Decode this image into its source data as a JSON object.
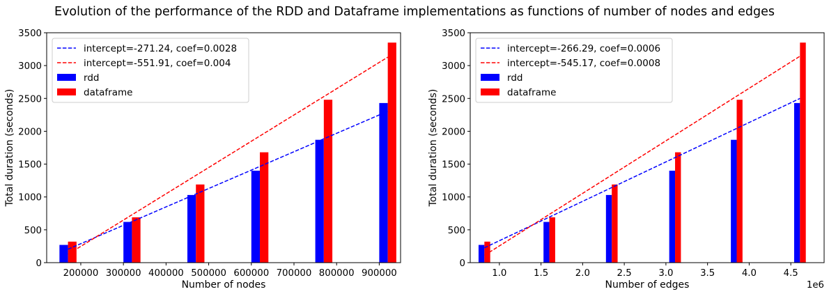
{
  "figure": {
    "title": "Evolution of the performance of the RDD and Dataframe implementations as functions of number of nodes and edges"
  },
  "colors": {
    "rdd": "#0000ff",
    "dataframe": "#ff0000"
  },
  "chart_data": [
    {
      "type": "bar",
      "xlabel": "Number of nodes",
      "ylabel": "Total duration (seconds)",
      "xlim": [
        120000,
        950000
      ],
      "ylim": [
        0,
        3500
      ],
      "xticks": [
        200000,
        300000,
        400000,
        500000,
        600000,
        700000,
        800000,
        900000
      ],
      "xtick_labels": [
        "200000",
        "300000",
        "400000",
        "500000",
        "600000",
        "700000",
        "800000",
        "900000"
      ],
      "yticks": [
        0,
        500,
        1000,
        1500,
        2000,
        2500,
        3000,
        3500
      ],
      "ytick_labels": [
        "0",
        "500",
        "1000",
        "1500",
        "2000",
        "2500",
        "3000",
        "3500"
      ],
      "x_offset_label": "",
      "x": [
        170000,
        320000,
        470000,
        620000,
        770000,
        920000
      ],
      "bar_width": 20000,
      "series": [
        {
          "name": "rdd",
          "color": "#0000ff",
          "values": [
            270,
            620,
            1030,
            1400,
            1870,
            2430
          ]
        },
        {
          "name": "dataframe",
          "color": "#ff0000",
          "values": [
            320,
            690,
            1190,
            1680,
            2480,
            3350
          ]
        }
      ],
      "fit_lines": [
        {
          "label": "intercept=-271.24, coef=0.0028",
          "color": "#0000ff",
          "intercept": -271.24,
          "coef": 0.0028,
          "x_range": [
            170000,
            920000
          ]
        },
        {
          "label": "intercept=-551.91, coef=0.004",
          "color": "#ff0000",
          "intercept": -551.91,
          "coef": 0.004,
          "x_range": [
            170000,
            920000
          ]
        }
      ],
      "legend": [
        "intercept=-271.24, coef=0.0028",
        "intercept=-551.91, coef=0.004",
        "rdd",
        "dataframe"
      ],
      "legend_position": "upper-left",
      "grid": false
    },
    {
      "type": "bar",
      "xlabel": "Number of edges",
      "ylabel": "Total duration (seconds)",
      "xlim": [
        650000,
        4900000
      ],
      "ylim": [
        0,
        3500
      ],
      "xticks": [
        1000000,
        1500000,
        2000000,
        2500000,
        3000000,
        3500000,
        4000000,
        4500000
      ],
      "xtick_labels": [
        "1.0",
        "1.5",
        "2.0",
        "2.5",
        "3.0",
        "3.5",
        "4.0",
        "4.5"
      ],
      "yticks": [
        0,
        500,
        1000,
        1500,
        2000,
        2500,
        3000,
        3500
      ],
      "ytick_labels": [
        "0",
        "500",
        "1000",
        "1500",
        "2000",
        "2500",
        "3000",
        "3500"
      ],
      "x_offset_label": "1e6",
      "x": [
        820000,
        1600000,
        2350000,
        3110000,
        3850000,
        4610000
      ],
      "bar_width": 70000,
      "series": [
        {
          "name": "rdd",
          "color": "#0000ff",
          "values": [
            270,
            620,
            1030,
            1400,
            1870,
            2430
          ]
        },
        {
          "name": "dataframe",
          "color": "#ff0000",
          "values": [
            320,
            690,
            1190,
            1680,
            2480,
            3350
          ]
        }
      ],
      "fit_lines": [
        {
          "label": "intercept=-266.29, coef=0.0006",
          "color": "#0000ff",
          "intercept": -266.29,
          "coef": 0.0006,
          "x_range": [
            820000,
            4610000
          ]
        },
        {
          "label": "intercept=-545.17, coef=0.0008",
          "color": "#ff0000",
          "intercept": -545.17,
          "coef": 0.0008,
          "x_range": [
            820000,
            4610000
          ]
        }
      ],
      "legend": [
        "intercept=-266.29, coef=0.0006",
        "intercept=-545.17, coef=0.0008",
        "rdd",
        "dataframe"
      ],
      "legend_position": "upper-left",
      "grid": false
    }
  ]
}
